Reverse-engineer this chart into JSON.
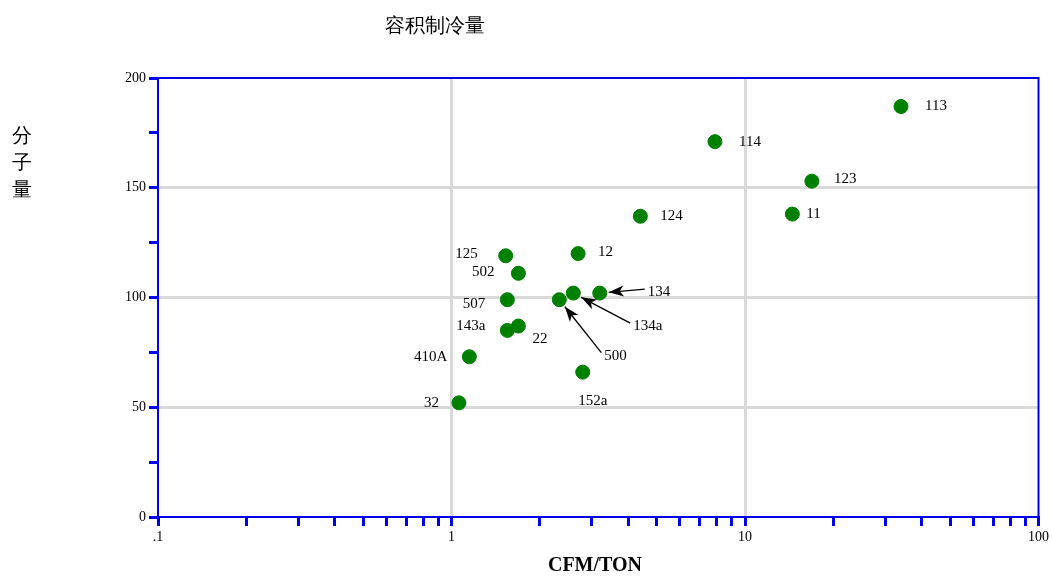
{
  "chart_data": {
    "type": "scatter",
    "title": "容积制冷量",
    "xlabel": "CFM/TON",
    "ylabel": "分子量",
    "log": "x",
    "xlim": [
      0.1,
      100
    ],
    "xticks": [
      {
        "value": 0.1,
        "label": ".1"
      },
      {
        "value": 0.2,
        "label": null
      },
      {
        "value": 0.3,
        "label": null
      },
      {
        "value": 0.4,
        "label": null
      },
      {
        "value": 0.5,
        "label": null
      },
      {
        "value": 0.6,
        "label": null
      },
      {
        "value": 0.7,
        "label": null
      },
      {
        "value": 0.8,
        "label": null
      },
      {
        "value": 0.9,
        "label": null
      },
      1,
      {
        "value": 2,
        "label": null
      },
      {
        "value": 3,
        "label": null
      },
      {
        "value": 4,
        "label": null
      },
      {
        "value": 5,
        "label": null
      },
      {
        "value": 6,
        "label": null
      },
      {
        "value": 7,
        "label": null
      },
      {
        "value": 8,
        "label": null
      },
      {
        "value": 9,
        "label": null
      },
      10,
      {
        "value": 20,
        "label": null
      },
      {
        "value": 30,
        "label": null
      },
      {
        "value": 40,
        "label": null
      },
      {
        "value": 50,
        "label": null
      },
      {
        "value": 60,
        "label": null
      },
      {
        "value": 70,
        "label": null
      },
      {
        "value": 80,
        "label": null
      },
      {
        "value": 90,
        "label": null
      },
      100
    ],
    "ylim": [
      0,
      200
    ],
    "yticks": [
      0,
      {
        "value": 25,
        "label": null
      },
      50,
      {
        "value": 75,
        "label": null
      },
      100,
      {
        "value": 125,
        "label": null
      },
      150,
      {
        "value": 175,
        "label": null
      },
      200
    ],
    "grid": true,
    "legend": false,
    "marker": "circle",
    "series": [
      {
        "color": "#008000",
        "x": [
          34,
          7.9,
          16.9,
          14.5,
          4.4,
          2.7,
          1.53,
          1.69,
          1.55,
          3.2,
          2.6,
          2.33,
          1.55,
          1.69,
          1.15,
          1.06,
          2.8
        ],
        "values": [
          187,
          171,
          153,
          138,
          137,
          120,
          119,
          111,
          99,
          102,
          102,
          99,
          85,
          87,
          73,
          52,
          66
        ]
      }
    ],
    "annotations": [
      {
        "text": "113",
        "x": 34,
        "y": 187
      },
      {
        "text": "114",
        "x": 7.9,
        "y": 171
      },
      {
        "text": "123",
        "x": 16.9,
        "y": 153
      },
      {
        "text": "11",
        "x": 14.5,
        "y": 138
      },
      {
        "text": "124",
        "x": 4.4,
        "y": 137
      },
      {
        "text": "12",
        "x": 2.7,
        "y": 120
      },
      {
        "text": "125",
        "x": 1.53,
        "y": 119
      },
      {
        "text": "502",
        "x": 1.69,
        "y": 111
      },
      {
        "text": "507",
        "x": 1.55,
        "y": 99
      },
      {
        "text": "134",
        "x": 3.2,
        "y": 102
      },
      {
        "text": "134a",
        "x": 2.6,
        "y": 102
      },
      {
        "text": "500",
        "x": 2.33,
        "y": 99
      },
      {
        "text": "143a",
        "x": 1.55,
        "y": 85
      },
      {
        "text": "22",
        "x": 1.69,
        "y": 87
      },
      {
        "text": "410A",
        "x": 1.15,
        "y": 73
      },
      {
        "text": "32",
        "x": 1.06,
        "y": 52
      },
      {
        "text": "152a",
        "x": 2.8,
        "y": 66
      }
    ]
  }
}
